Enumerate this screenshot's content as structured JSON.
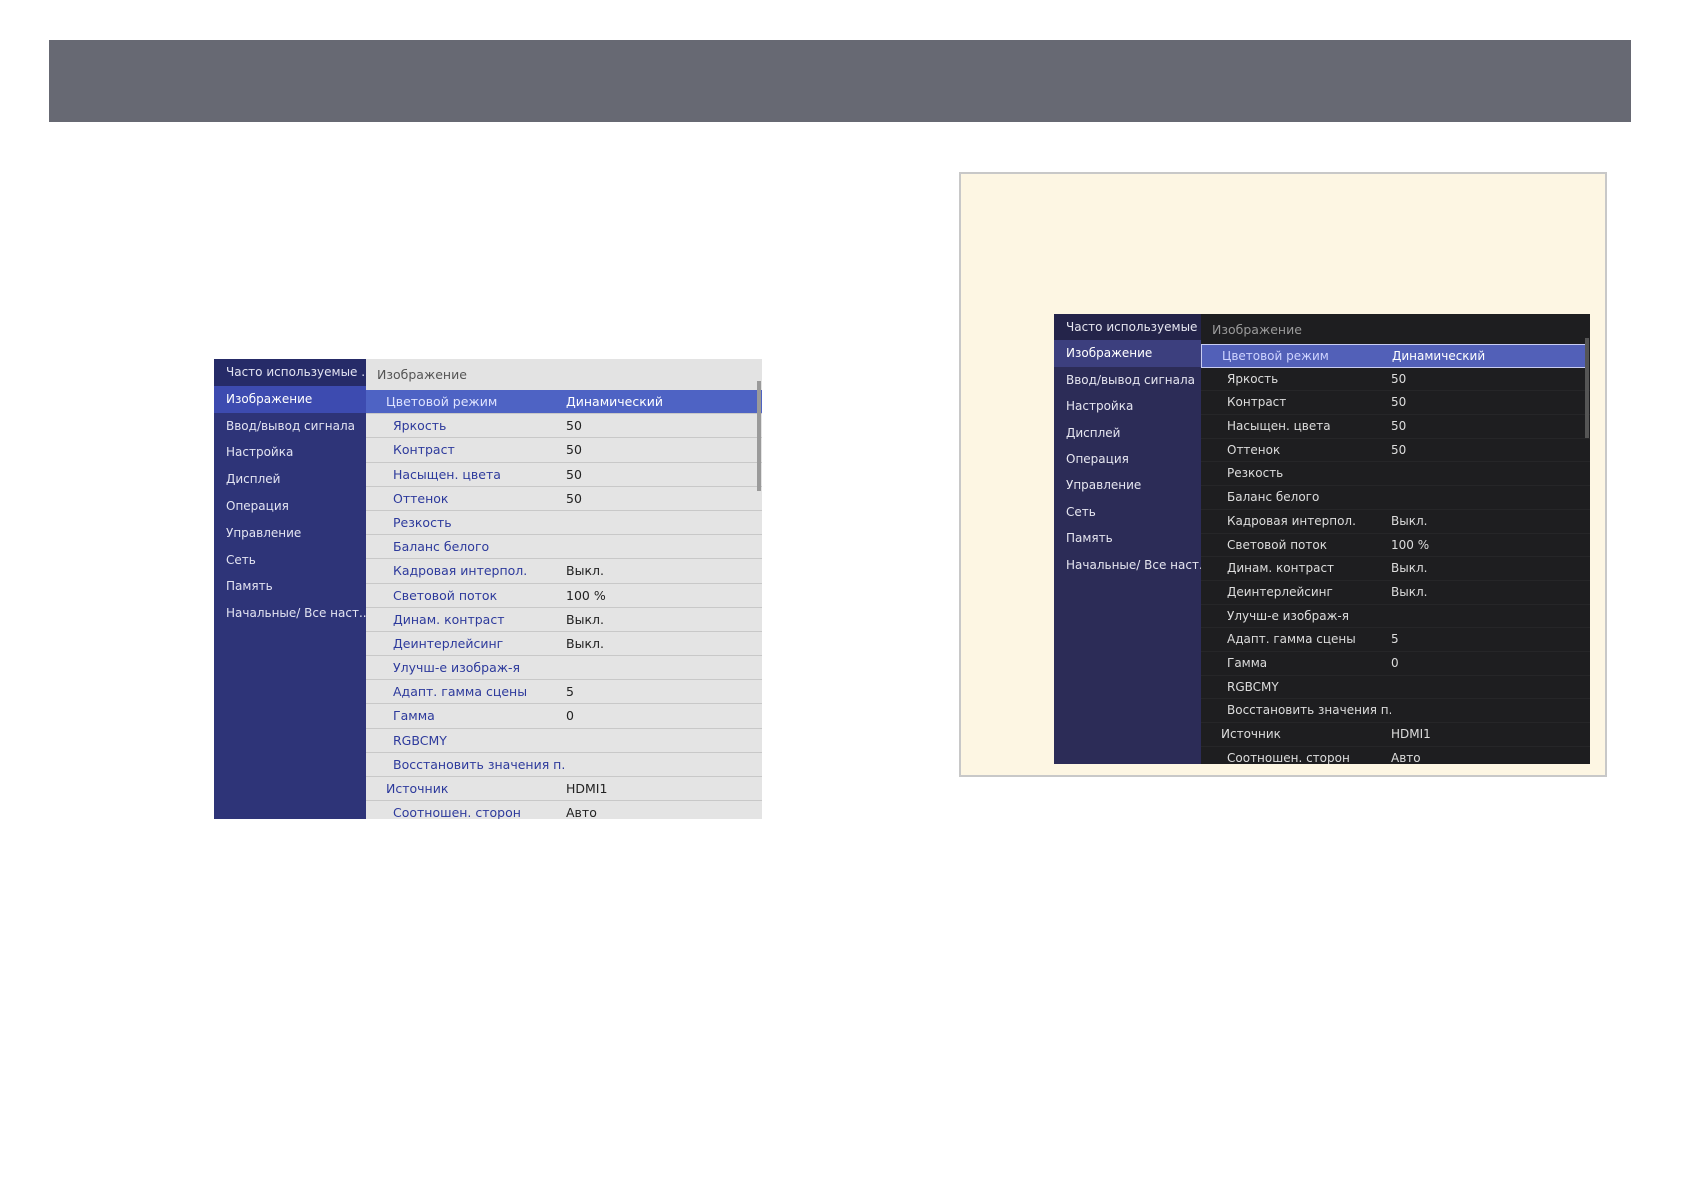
{
  "sidebar": [
    "Часто используемые ...",
    "Изображение",
    "Ввод/вывод сигнала",
    "Настройка",
    "Дисплей",
    "Операция",
    "Управление",
    "Сеть",
    "Память",
    "Начальные/ Все наст..."
  ],
  "header": "Изображение",
  "rows": [
    {
      "k": "Цветовой режим",
      "v": "Динамический",
      "top": true,
      "sel": true
    },
    {
      "k": "Яркость",
      "v": "50"
    },
    {
      "k": "Контраст",
      "v": "50"
    },
    {
      "k": "Насыщен. цвета",
      "v": "50"
    },
    {
      "k": "Оттенок",
      "v": "50"
    },
    {
      "k": "Резкость",
      "v": ""
    },
    {
      "k": "Баланс белого",
      "v": ""
    },
    {
      "k": "Кадровая интерпол.",
      "v": "Выкл."
    },
    {
      "k": "Световой поток",
      "v": "100 %"
    },
    {
      "k": "Динам. контраст",
      "v": "Выкл."
    },
    {
      "k": "Деинтерлейсинг",
      "v": "Выкл."
    },
    {
      "k": "Улучш-е изображ-я",
      "v": ""
    },
    {
      "k": "Адапт. гамма сцены",
      "v": "5"
    },
    {
      "k": "Гамма",
      "v": "0"
    },
    {
      "k": "RGBCMY",
      "v": ""
    },
    {
      "k": "Восстановить значения п...",
      "v": ""
    },
    {
      "k": "Источник",
      "v": "HDMI1",
      "top": true
    },
    {
      "k": "Соотношен. сторон",
      "v": "Авто"
    }
  ],
  "colors": {
    "banner": "#676973",
    "light_sidebar": "#2e3478",
    "light_selected": "#4e63c4",
    "dark_sidebar": "#2c2c57",
    "dark_selected": "#5260b8",
    "tip_background": "#fdf6e3"
  }
}
